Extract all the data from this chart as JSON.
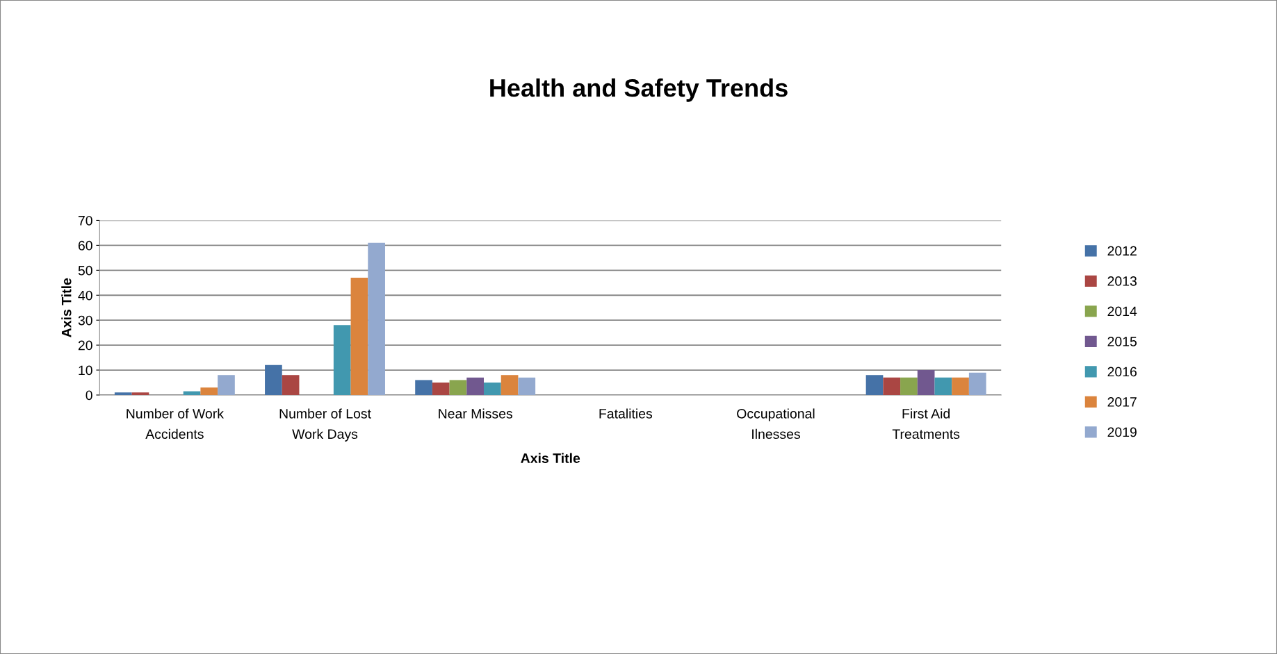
{
  "chart_data": {
    "type": "bar",
    "title": "Health and Safety Trends",
    "xlabel": "Axis Title",
    "ylabel": "Axis Title",
    "categories": [
      "Number of Work\nAccidents",
      "Number of Lost\nWork Days",
      "Near Misses",
      "Fatalities",
      "Occupational\nIlnesses",
      "First Aid\nTreatments"
    ],
    "series": [
      {
        "name": "2012",
        "color": "#4572a7",
        "values": [
          1,
          12,
          6,
          0,
          0,
          8
        ]
      },
      {
        "name": "2013",
        "color": "#aa4643",
        "values": [
          1,
          8,
          5,
          0,
          0,
          7
        ]
      },
      {
        "name": "2014",
        "color": "#89a54e",
        "values": [
          0,
          0,
          6,
          0,
          0,
          7
        ]
      },
      {
        "name": "2015",
        "color": "#71588f",
        "values": [
          0,
          0,
          7,
          0,
          0,
          10
        ]
      },
      {
        "name": "2016",
        "color": "#4198af",
        "values": [
          1.5,
          28,
          5,
          0,
          0,
          7
        ]
      },
      {
        "name": "2017",
        "color": "#db843d",
        "values": [
          3,
          47,
          8,
          0,
          0,
          7
        ]
      },
      {
        "name": "2019",
        "color": "#93a9cf",
        "values": [
          8,
          61,
          7,
          0,
          0,
          9
        ]
      }
    ],
    "ylim": [
      0,
      70
    ],
    "yticks": [
      0,
      10,
      20,
      30,
      40,
      50,
      60,
      70
    ],
    "grid": "y",
    "legend": "right"
  }
}
